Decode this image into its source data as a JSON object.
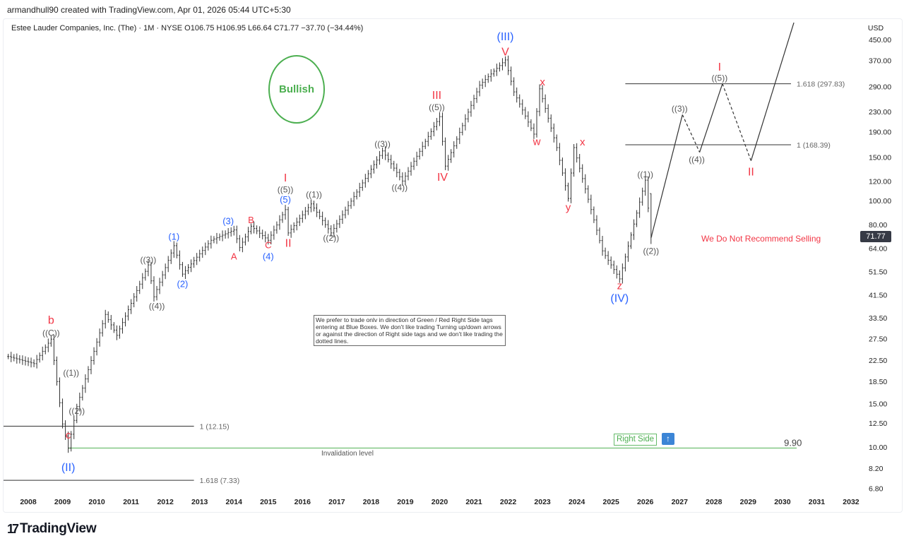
{
  "header": {
    "credit": "armandhull90 created with TradingView.com, Apr 01, 2026 05:44 UTC+5:30",
    "symbol_line": "Estee Lauder Companies, Inc. (The) · 1M · NYSE  O106.75  H106.95  L66.64  C71.77  −37.70 (−34.44%)"
  },
  "footer": {
    "logo_text": "TradingView",
    "logo_mark": "17"
  },
  "colors": {
    "red": "#f23645",
    "blue": "#2962ff",
    "gray": "#555555",
    "green": "#4caf50",
    "bar": "#333333"
  },
  "annotations": {
    "bullish": "Bullish",
    "no_sell": "We Do Not Recommend Selling",
    "note": "We prefer to trade onlv in direction of Green / Red Right Side tags entering at Blue Boxes. We don't like trading Turning up/down arrows or against the direction of Right side tags and we don't like trading the dotted lines.",
    "right_side": "Right Side",
    "right_side_icon": "arrow-up-icon",
    "invalidation": "Invalidation level"
  },
  "chart_data": {
    "type": "ohlc",
    "currency": "USD",
    "y_scale": "log",
    "ylim": [
      6.3,
      480
    ],
    "xlim": [
      "2007-05",
      "2032-06"
    ],
    "grid": false,
    "y_ticks": [
      "450.00",
      "370.00",
      "290.00",
      "230.00",
      "190.00",
      "150.00",
      "120.00",
      "100.00",
      "80.00",
      "64.00",
      "51.50",
      "41.50",
      "33.50",
      "27.50",
      "22.50",
      "18.50",
      "15.00",
      "12.50",
      "10.00",
      "8.20",
      "6.80"
    ],
    "x_ticks": [
      "2008",
      "2009",
      "2010",
      "2011",
      "2012",
      "2013",
      "2014",
      "2015",
      "2016",
      "2017",
      "2018",
      "2019",
      "2020",
      "2021",
      "2022",
      "2023",
      "2024",
      "2025",
      "2026",
      "2027",
      "2028",
      "2029",
      "2030",
      "2031",
      "2032"
    ],
    "last_bar": {
      "open": 106.75,
      "high": 106.95,
      "low": 66.64,
      "close": 71.77,
      "change": -37.7,
      "change_pct": -34.44,
      "label": "71.77"
    },
    "price_swings": [
      [
        "2007-06",
        23.3
      ],
      [
        "2008-03",
        21.8
      ],
      [
        "2008-09",
        27.4
      ],
      [
        "2009-01",
        12.4
      ],
      [
        "2009-03",
        9.9
      ],
      [
        "2009-06",
        14.6
      ],
      [
        "2010-04",
        34.5
      ],
      [
        "2010-08",
        28.4
      ],
      [
        "2011-07",
        54.8
      ],
      [
        "2011-09",
        40.7
      ],
      [
        "2012-04",
        65.6
      ],
      [
        "2012-07",
        50.3
      ],
      [
        "2013-05",
        69
      ],
      [
        "2014-01",
        76
      ],
      [
        "2014-03",
        64.5
      ],
      [
        "2014-07",
        78.7
      ],
      [
        "2015-01",
        69
      ],
      [
        "2015-07",
        91.9
      ],
      [
        "2015-08",
        73.9
      ],
      [
        "2016-04",
        96.9
      ],
      [
        "2016-11",
        73.9
      ],
      [
        "2017-09",
        113
      ],
      [
        "2018-05",
        159
      ],
      [
        "2018-12",
        120
      ],
      [
        "2020-01",
        219
      ],
      [
        "2020-03",
        138
      ],
      [
        "2021-03",
        294
      ],
      [
        "2021-12",
        372
      ],
      [
        "2022-03",
        276
      ],
      [
        "2022-10",
        186
      ],
      [
        "2022-12",
        284
      ],
      [
        "2023-06",
        164
      ],
      [
        "2023-10",
        102
      ],
      [
        "2023-12",
        164
      ],
      [
        "2024-10",
        62.5
      ],
      [
        "2025-04",
        48.1
      ],
      [
        "2026-01",
        121
      ],
      [
        "2026-03",
        71.77
      ]
    ],
    "projection": [
      {
        "from": [
          "2026-03",
          70.5
        ],
        "to": [
          "2027-02",
          223
        ],
        "style": "solid"
      },
      {
        "from": [
          "2027-02",
          223
        ],
        "to": [
          "2027-08",
          157
        ],
        "style": "dashed"
      },
      {
        "from": [
          "2027-08",
          157
        ],
        "to": [
          "2028-04",
          297.83
        ],
        "style": "solid"
      },
      {
        "from": [
          "2028-04",
          297.83
        ],
        "to": [
          "2029-02",
          145
        ],
        "style": "dashed"
      },
      {
        "from": [
          "2029-02",
          145
        ],
        "to": [
          "2030-05",
          527
        ],
        "style": "solid"
      }
    ],
    "levels": [
      {
        "label": "1.618 (297.83)",
        "price": 297.83,
        "from": "2025-06",
        "to": "2030-04",
        "color": "#333333"
      },
      {
        "label": "1 (168.39)",
        "price": 168.39,
        "from": "2025-06",
        "to": "2030-04",
        "color": "#333333"
      },
      {
        "label": "1 (12.15)",
        "price": 12.15,
        "from": "2007-04",
        "to": "2012-11",
        "color": "#333333"
      },
      {
        "label": "1.618 (7.33)",
        "price": 7.33,
        "from": "2007-04",
        "to": "2012-11",
        "color": "#333333"
      },
      {
        "label": "9.90",
        "price": 9.9,
        "from": "2009-03",
        "to": "2030-06",
        "color": "#81c784"
      }
    ],
    "wave_labels": [
      {
        "t": "b",
        "d": "2008-09",
        "p": 32.8,
        "c": "red",
        "s": 16
      },
      {
        "t": "((C))",
        "d": "2008-09",
        "p": 29.1,
        "c": "gray",
        "s": 12
      },
      {
        "t": "((1))",
        "d": "2009-04",
        "p": 20.0,
        "c": "gray",
        "s": 12
      },
      {
        "t": "((2))",
        "d": "2009-06",
        "p": 14.0,
        "c": "gray",
        "s": 12
      },
      {
        "t": "c",
        "d": "2009-03",
        "p": 11.2,
        "c": "red",
        "s": 15
      },
      {
        "t": "(II)",
        "d": "2009-03",
        "p": 8.3,
        "c": "blue",
        "s": 16
      },
      {
        "t": "((3))",
        "d": "2011-07",
        "p": 57.5,
        "c": "gray",
        "s": 12
      },
      {
        "t": "((4))",
        "d": "2011-10",
        "p": 37.4,
        "c": "gray",
        "s": 12
      },
      {
        "t": "(1)",
        "d": "2012-04",
        "p": 71.5,
        "c": "blue",
        "s": 13
      },
      {
        "t": "(2)",
        "d": "2012-07",
        "p": 45.9,
        "c": "blue",
        "s": 13
      },
      {
        "t": "(3)",
        "d": "2013-11",
        "p": 82.7,
        "c": "blue",
        "s": 13
      },
      {
        "t": "A",
        "d": "2014-01",
        "p": 59.4,
        "c": "red",
        "s": 13
      },
      {
        "t": "B",
        "d": "2014-07",
        "p": 83.3,
        "c": "red",
        "s": 13
      },
      {
        "t": "C",
        "d": "2015-01",
        "p": 66.1,
        "c": "red",
        "s": 13
      },
      {
        "t": "(4)",
        "d": "2015-01",
        "p": 59.4,
        "c": "blue",
        "s": 13
      },
      {
        "t": "I",
        "d": "2015-07",
        "p": 124,
        "c": "red",
        "s": 16
      },
      {
        "t": "((5))",
        "d": "2015-07",
        "p": 111,
        "c": "gray",
        "s": 12
      },
      {
        "t": "(5)",
        "d": "2015-07",
        "p": 101,
        "c": "blue",
        "s": 13
      },
      {
        "t": "II",
        "d": "2015-08",
        "p": 67.4,
        "c": "red",
        "s": 16
      },
      {
        "t": "((1))",
        "d": "2016-05",
        "p": 106,
        "c": "gray",
        "s": 12
      },
      {
        "t": "((2))",
        "d": "2016-11",
        "p": 70.5,
        "c": "gray",
        "s": 12
      },
      {
        "t": "((3))",
        "d": "2018-05",
        "p": 170,
        "c": "gray",
        "s": 12
      },
      {
        "t": "((4))",
        "d": "2018-11",
        "p": 113,
        "c": "gray",
        "s": 12
      },
      {
        "t": "III",
        "d": "2019-12",
        "p": 268,
        "c": "red",
        "s": 16
      },
      {
        "t": "((5))",
        "d": "2019-12",
        "p": 239,
        "c": "gray",
        "s": 12
      },
      {
        "t": "IV",
        "d": "2020-02",
        "p": 125,
        "c": "red",
        "s": 16
      },
      {
        "t": "(III)",
        "d": "2021-12",
        "p": 464,
        "c": "blue",
        "s": 16
      },
      {
        "t": "V",
        "d": "2021-12",
        "p": 402,
        "c": "red",
        "s": 16
      },
      {
        "t": "w",
        "d": "2022-11",
        "p": 174,
        "c": "red",
        "s": 15
      },
      {
        "t": "x",
        "d": "2023-01",
        "p": 303,
        "c": "red",
        "s": 15
      },
      {
        "t": "y",
        "d": "2023-10",
        "p": 94,
        "c": "red",
        "s": 15
      },
      {
        "t": "x",
        "d": "2024-03",
        "p": 173,
        "c": "red",
        "s": 15
      },
      {
        "t": "z",
        "d": "2025-04",
        "p": 45.3,
        "c": "red",
        "s": 15
      },
      {
        "t": "(IV)",
        "d": "2025-04",
        "p": 40.2,
        "c": "blue",
        "s": 16
      },
      {
        "t": "((1))",
        "d": "2026-01",
        "p": 128,
        "c": "gray",
        "s": 12
      },
      {
        "t": "((2))",
        "d": "2026-03",
        "p": 62.5,
        "c": "gray",
        "s": 12
      },
      {
        "t": "((3))",
        "d": "2027-01",
        "p": 236,
        "c": "gray",
        "s": 12
      },
      {
        "t": "((4))",
        "d": "2027-07",
        "p": 147,
        "c": "gray",
        "s": 12
      },
      {
        "t": "I",
        "d": "2028-03",
        "p": 349,
        "c": "red",
        "s": 16
      },
      {
        "t": "((5))",
        "d": "2028-03",
        "p": 315,
        "c": "gray",
        "s": 12
      },
      {
        "t": "II",
        "d": "2029-02",
        "p": 131,
        "c": "red",
        "s": 16
      }
    ]
  }
}
